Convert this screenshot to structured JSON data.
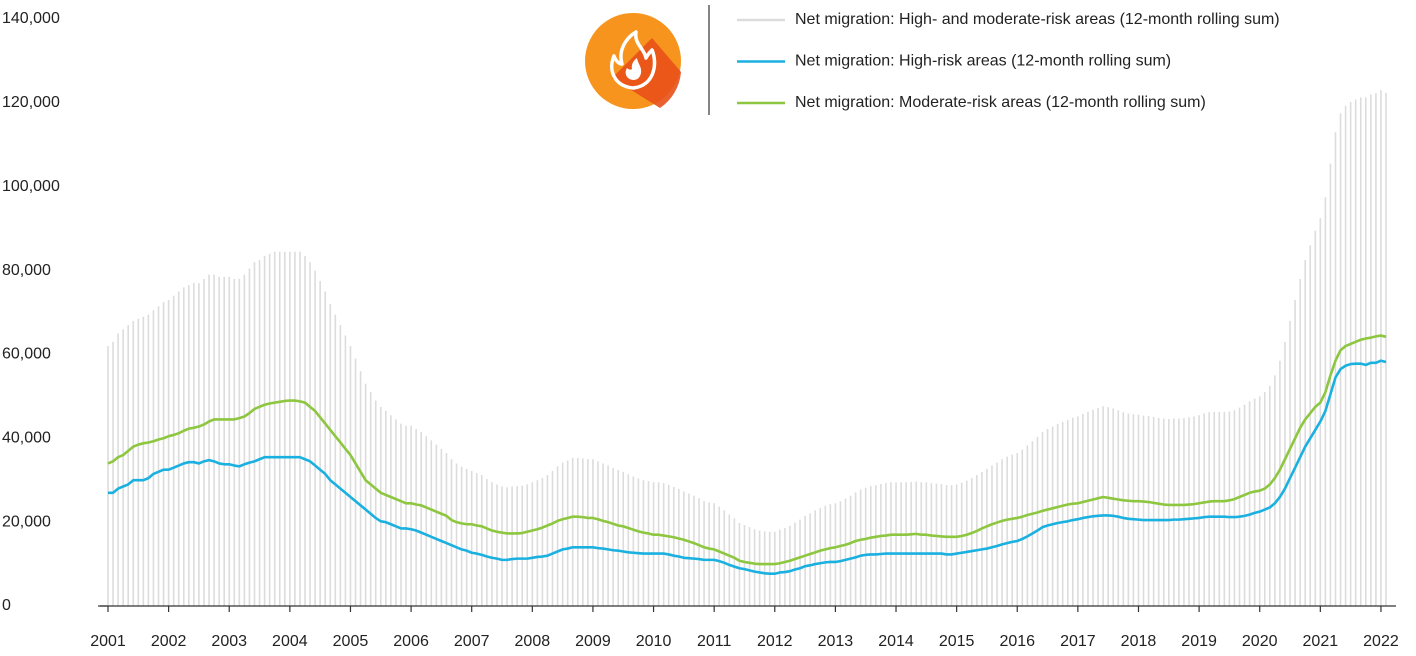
{
  "chart_data": {
    "type": "line",
    "categories": [
      "2001",
      null,
      null,
      null,
      null,
      null,
      null,
      null,
      null,
      null,
      null,
      null,
      "2002",
      null,
      null,
      null,
      null,
      null,
      null,
      null,
      null,
      null,
      null,
      null,
      "2003",
      null,
      null,
      null,
      null,
      null,
      null,
      null,
      null,
      null,
      null,
      null,
      "2004",
      null,
      null,
      null,
      null,
      null,
      null,
      null,
      null,
      null,
      null,
      null,
      "2005",
      null,
      null,
      null,
      null,
      null,
      null,
      null,
      null,
      null,
      null,
      null,
      "2006",
      null,
      null,
      null,
      null,
      null,
      null,
      null,
      null,
      null,
      null,
      null,
      "2007",
      null,
      null,
      null,
      null,
      null,
      null,
      null,
      null,
      null,
      null,
      null,
      "2008",
      null,
      null,
      null,
      null,
      null,
      null,
      null,
      null,
      null,
      null,
      null,
      "2009",
      null,
      null,
      null,
      null,
      null,
      null,
      null,
      null,
      null,
      null,
      null,
      "2010",
      null,
      null,
      null,
      null,
      null,
      null,
      null,
      null,
      null,
      null,
      null,
      "2011",
      null,
      null,
      null,
      null,
      null,
      null,
      null,
      null,
      null,
      null,
      null,
      "2012",
      null,
      null,
      null,
      null,
      null,
      null,
      null,
      null,
      null,
      null,
      null,
      "2013",
      null,
      null,
      null,
      null,
      null,
      null,
      null,
      null,
      null,
      null,
      null,
      "2014",
      null,
      null,
      null,
      null,
      null,
      null,
      null,
      null,
      null,
      null,
      null,
      "2015",
      null,
      null,
      null,
      null,
      null,
      null,
      null,
      null,
      null,
      null,
      null,
      "2016",
      null,
      null,
      null,
      null,
      null,
      null,
      null,
      null,
      null,
      null,
      null,
      "2017",
      null,
      null,
      null,
      null,
      null,
      null,
      null,
      null,
      null,
      null,
      null,
      "2018",
      null,
      null,
      null,
      null,
      null,
      null,
      null,
      null,
      null,
      null,
      null,
      "2019",
      null,
      null,
      null,
      null,
      null,
      null,
      null,
      null,
      null,
      null,
      null,
      "2020",
      null,
      null,
      null,
      null,
      null,
      null,
      null,
      null,
      null,
      null,
      null,
      "2021",
      null,
      null,
      null,
      null,
      null,
      null,
      null,
      null,
      null,
      null,
      null,
      "2022",
      null
    ],
    "series": [
      {
        "name": "Net migration: High- and moderate-risk areas (12-month rolling sum)",
        "type": "bar",
        "color": "#dcdcdc",
        "values": [
          62000,
          63000,
          65000,
          66000,
          67000,
          68000,
          68500,
          69000,
          69500,
          70500,
          71500,
          72500,
          73000,
          74000,
          75000,
          76000,
          76500,
          77000,
          77000,
          78000,
          79000,
          79000,
          78500,
          78500,
          78500,
          78000,
          78000,
          79000,
          80500,
          82000,
          82500,
          83500,
          84000,
          84500,
          84500,
          84500,
          84500,
          84500,
          84500,
          83500,
          82000,
          80000,
          77500,
          75000,
          72000,
          69500,
          67000,
          64500,
          62000,
          59000,
          56000,
          53000,
          51000,
          49000,
          47500,
          46500,
          45500,
          44500,
          43500,
          43000,
          43000,
          42200,
          41500,
          40500,
          39500,
          38500,
          37500,
          36500,
          35000,
          34000,
          33200,
          32700,
          32200,
          31700,
          31200,
          30300,
          29500,
          29000,
          28500,
          28300,
          28500,
          28600,
          28700,
          29000,
          29500,
          30000,
          30500,
          31200,
          32200,
          33300,
          34200,
          34700,
          35300,
          35300,
          35200,
          35000,
          35000,
          34500,
          34000,
          33500,
          32900,
          32400,
          32000,
          31400,
          30900,
          30400,
          30000,
          29800,
          29500,
          29500,
          29300,
          28900,
          28400,
          27900,
          27300,
          26800,
          26300,
          25700,
          25000,
          24700,
          24500,
          23700,
          22800,
          21800,
          20900,
          19800,
          19300,
          18800,
          18300,
          18000,
          17800,
          17700,
          17700,
          18200,
          18600,
          19100,
          19900,
          20600,
          21500,
          22100,
          22800,
          23400,
          23900,
          24300,
          24500,
          25000,
          25600,
          26300,
          27100,
          27800,
          28200,
          28600,
          28800,
          29100,
          29300,
          29500,
          29500,
          29500,
          29500,
          29600,
          29700,
          29500,
          29500,
          29300,
          29200,
          29100,
          28800,
          28800,
          29000,
          29400,
          29900,
          30500,
          31200,
          32000,
          32700,
          33500,
          34200,
          35000,
          35600,
          36100,
          36500,
          37300,
          38300,
          39300,
          40300,
          41500,
          42200,
          42800,
          43400,
          43900,
          44400,
          44900,
          45200,
          45800,
          46300,
          46800,
          47200,
          47600,
          47400,
          47100,
          46700,
          46200,
          45900,
          45700,
          45600,
          45400,
          45300,
          45100,
          44900,
          44700,
          44600,
          44700,
          44700,
          44800,
          45000,
          45200,
          45500,
          45900,
          46200,
          46300,
          46300,
          46300,
          46400,
          46700,
          47300,
          48000,
          48800,
          49500,
          50000,
          51000,
          52500,
          55000,
          58500,
          63000,
          68000,
          73000,
          78000,
          82500,
          86000,
          89500,
          92500,
          97500,
          105500,
          113000,
          117500,
          119300,
          120200,
          120800,
          121300,
          121300,
          122000,
          122300,
          123000,
          122400
        ]
      },
      {
        "name": "Net migration: High-risk areas (12-month rolling sum)",
        "color": "#1ab0e0",
        "values": [
          27000,
          27000,
          28000,
          28500,
          29000,
          30000,
          30000,
          30000,
          30500,
          31500,
          32000,
          32500,
          32500,
          33000,
          33500,
          34000,
          34300,
          34300,
          34000,
          34500,
          34800,
          34500,
          34000,
          33800,
          33800,
          33500,
          33300,
          33800,
          34200,
          34500,
          35000,
          35500,
          35500,
          35500,
          35500,
          35500,
          35500,
          35500,
          35500,
          35000,
          34500,
          33500,
          32500,
          31500,
          30000,
          29000,
          28000,
          27000,
          26000,
          25000,
          24000,
          23000,
          22000,
          21000,
          20200,
          20000,
          19500,
          19000,
          18500,
          18500,
          18300,
          18000,
          17500,
          17000,
          16500,
          16000,
          15500,
          15000,
          14500,
          14000,
          13500,
          13200,
          12700,
          12500,
          12200,
          11800,
          11500,
          11300,
          11000,
          11000,
          11200,
          11300,
          11300,
          11300,
          11500,
          11700,
          11800,
          12000,
          12500,
          13000,
          13500,
          13700,
          14000,
          14000,
          14000,
          14000,
          14000,
          13800,
          13700,
          13500,
          13300,
          13200,
          13000,
          12800,
          12700,
          12600,
          12500,
          12500,
          12500,
          12500,
          12500,
          12300,
          12000,
          11800,
          11500,
          11400,
          11300,
          11200,
          11000,
          11000,
          11000,
          10700,
          10300,
          9800,
          9400,
          9000,
          8800,
          8500,
          8200,
          8000,
          7800,
          7700,
          7700,
          8000,
          8100,
          8300,
          8700,
          9000,
          9500,
          9700,
          10000,
          10200,
          10400,
          10500,
          10500,
          10700,
          11000,
          11300,
          11600,
          12000,
          12200,
          12300,
          12300,
          12400,
          12500,
          12500,
          12500,
          12500,
          12500,
          12500,
          12500,
          12500,
          12500,
          12500,
          12500,
          12500,
          12300,
          12300,
          12500,
          12700,
          12900,
          13100,
          13300,
          13500,
          13700,
          14000,
          14300,
          14700,
          15000,
          15300,
          15500,
          16000,
          16600,
          17300,
          18000,
          18800,
          19200,
          19500,
          19800,
          20000,
          20200,
          20500,
          20700,
          21000,
          21200,
          21400,
          21500,
          21600,
          21600,
          21500,
          21300,
          21000,
          20800,
          20700,
          20600,
          20500,
          20500,
          20500,
          20500,
          20500,
          20500,
          20600,
          20600,
          20700,
          20800,
          20900,
          21000,
          21200,
          21300,
          21300,
          21300,
          21300,
          21200,
          21200,
          21300,
          21500,
          21800,
          22200,
          22500,
          23000,
          23500,
          24500,
          26000,
          28000,
          30500,
          33000,
          35500,
          38000,
          40000,
          42000,
          44000,
          46500,
          50500,
          54500,
          56500,
          57300,
          57700,
          57800,
          57800,
          57500,
          58000,
          58000,
          58500,
          58200
        ]
      },
      {
        "name": "Net migration: Moderate-risk areas (12-month rolling sum)",
        "color": "#8dc63f",
        "values": [
          34000,
          34500,
          35500,
          36000,
          37000,
          38000,
          38500,
          38800,
          39000,
          39300,
          39700,
          40000,
          40500,
          40800,
          41200,
          41800,
          42300,
          42500,
          42800,
          43300,
          44000,
          44500,
          44500,
          44500,
          44500,
          44500,
          44800,
          45200,
          46000,
          47000,
          47500,
          48000,
          48300,
          48500,
          48700,
          48900,
          49000,
          49000,
          48800,
          48500,
          47500,
          46500,
          45000,
          43500,
          42000,
          40500,
          39000,
          37500,
          36000,
          34000,
          32000,
          30000,
          29000,
          28000,
          27000,
          26500,
          26000,
          25500,
          25000,
          24500,
          24500,
          24200,
          24000,
          23500,
          23000,
          22500,
          22000,
          21500,
          20500,
          20000,
          19700,
          19500,
          19500,
          19200,
          19000,
          18500,
          18000,
          17700,
          17500,
          17300,
          17300,
          17300,
          17400,
          17700,
          18000,
          18300,
          18700,
          19200,
          19700,
          20300,
          20700,
          21000,
          21300,
          21300,
          21200,
          21000,
          21000,
          20700,
          20300,
          20000,
          19600,
          19200,
          19000,
          18600,
          18200,
          17800,
          17500,
          17300,
          17000,
          17000,
          16800,
          16600,
          16400,
          16100,
          15800,
          15400,
          15000,
          14500,
          14000,
          13700,
          13500,
          13000,
          12500,
          12000,
          11500,
          10800,
          10500,
          10300,
          10100,
          10000,
          10000,
          10000,
          10000,
          10200,
          10500,
          10800,
          11200,
          11600,
          12000,
          12400,
          12800,
          13200,
          13500,
          13800,
          14000,
          14300,
          14600,
          15000,
          15500,
          15800,
          16000,
          16300,
          16500,
          16700,
          16800,
          17000,
          17000,
          17000,
          17000,
          17100,
          17200,
          17000,
          17000,
          16800,
          16700,
          16600,
          16500,
          16500,
          16500,
          16700,
          17000,
          17400,
          17900,
          18500,
          19000,
          19500,
          19900,
          20300,
          20600,
          20800,
          21000,
          21300,
          21700,
          22000,
          22300,
          22700,
          23000,
          23300,
          23600,
          23900,
          24200,
          24400,
          24500,
          24800,
          25100,
          25400,
          25700,
          26000,
          25800,
          25600,
          25400,
          25200,
          25100,
          25000,
          25000,
          24900,
          24800,
          24600,
          24400,
          24200,
          24100,
          24100,
          24100,
          24100,
          24200,
          24300,
          24500,
          24700,
          24900,
          25000,
          25000,
          25000,
          25200,
          25500,
          26000,
          26500,
          27000,
          27300,
          27500,
          28000,
          29000,
          30500,
          32500,
          35000,
          37500,
          40000,
          42500,
          44500,
          46000,
          47500,
          48500,
          51000,
          55000,
          58500,
          61000,
          62000,
          62500,
          63000,
          63500,
          63800,
          64000,
          64300,
          64500,
          64200
        ]
      }
    ],
    "ylim": [
      0,
      140000
    ],
    "yticks": [
      0,
      {
        "value": 20000,
        "label": "20,000"
      },
      {
        "value": 40000,
        "label": "40,000"
      },
      {
        "value": 60000,
        "label": "60,000"
      },
      {
        "value": 80000,
        "label": "80,000"
      },
      {
        "value": 100000,
        "label": "100,000"
      },
      {
        "value": 120000,
        "label": "120,000"
      },
      {
        "value": 140000,
        "label": "140,000"
      }
    ],
    "grid": false
  }
}
